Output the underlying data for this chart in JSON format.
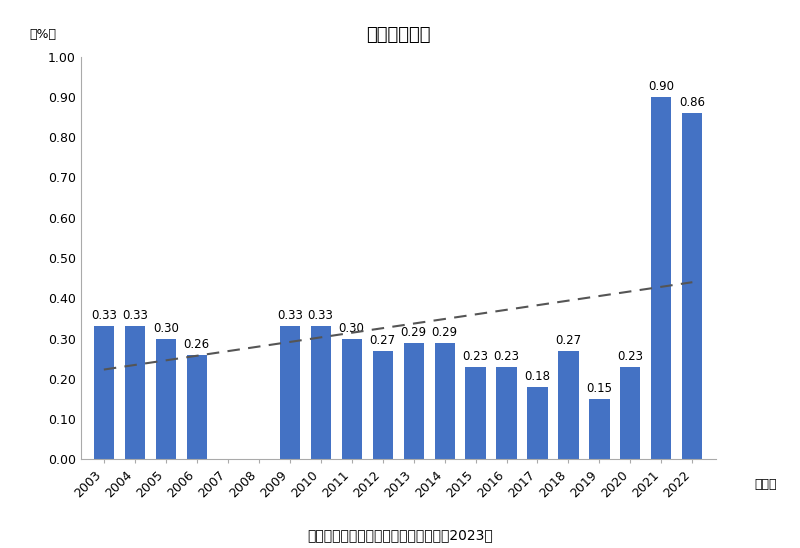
{
  "title": "货币市场基金",
  "ylabel": "（%）",
  "xlabel_suffix": "（年）",
  "source": "数据来源：中国证券投资基金业年报（2023）",
  "years": [
    2003,
    2004,
    2005,
    2006,
    2007,
    2008,
    2009,
    2010,
    2011,
    2012,
    2013,
    2014,
    2015,
    2016,
    2017,
    2018,
    2019,
    2020,
    2021,
    2022
  ],
  "values": [
    0.33,
    0.33,
    0.3,
    0.26,
    null,
    null,
    0.33,
    0.33,
    0.3,
    0.27,
    0.29,
    0.29,
    0.23,
    0.23,
    0.18,
    0.27,
    0.15,
    0.23,
    0.9,
    0.86
  ],
  "bar_color": "#4472C4",
  "trendline_color": "#555555",
  "ylim": [
    0,
    1.0
  ],
  "yticks": [
    0,
    0.1,
    0.2,
    0.3,
    0.4,
    0.5,
    0.6,
    0.7,
    0.8,
    0.9,
    1.0
  ],
  "background_color": "#ffffff",
  "title_fontsize": 13,
  "label_fontsize": 8.5,
  "tick_fontsize": 9,
  "source_fontsize": 10
}
